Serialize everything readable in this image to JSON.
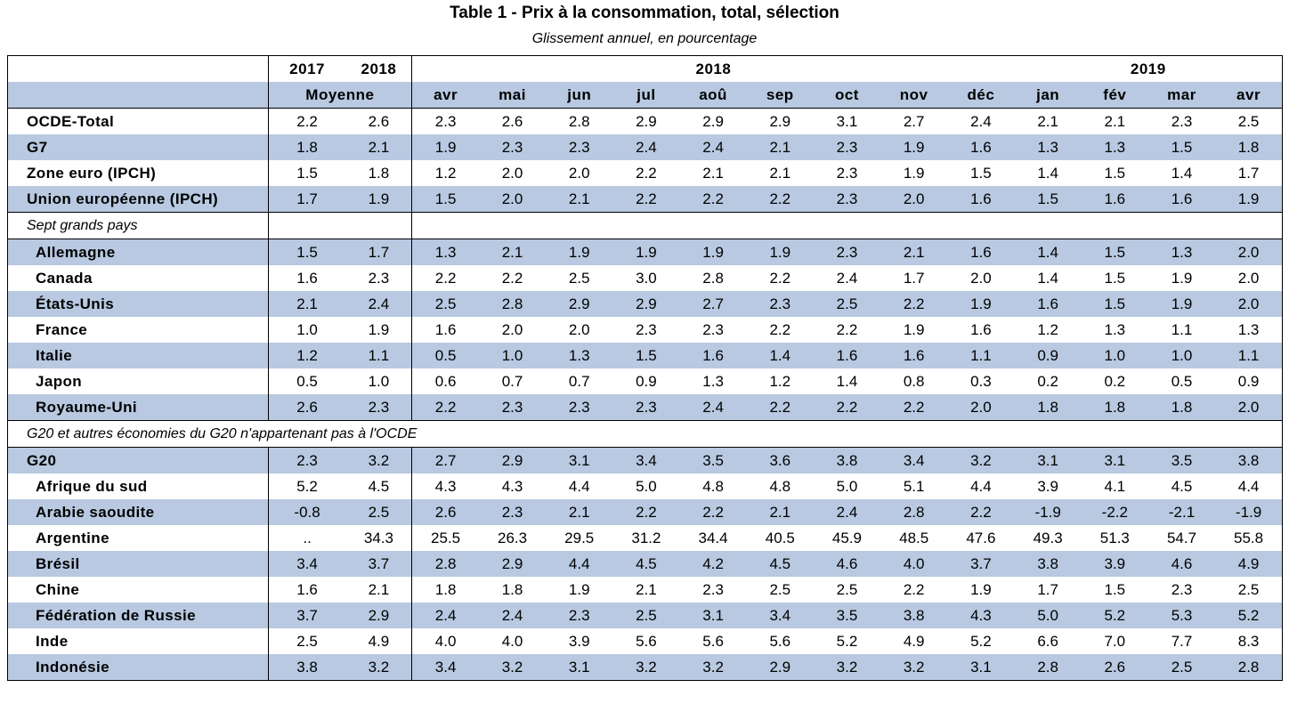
{
  "title": "Table 1 - Prix à la consommation, total, sélection",
  "subtitle": "Glissement annuel, en pourcentage",
  "header": {
    "year_a": "2017",
    "year_b": "2018",
    "year_group_2018": "2018",
    "year_group_2019": "2019",
    "average_label": "Moyenne",
    "months": [
      "avr",
      "mai",
      "jun",
      "jul",
      "aoû",
      "sep",
      "oct",
      "nov",
      "déc",
      "jan",
      "fév",
      "mar",
      "avr"
    ]
  },
  "sections": {
    "seven": "Sept grands pays",
    "g20": "G20 et autres économies du G20 n'appartenant pas à l'OCDE"
  },
  "rows": [
    {
      "label": "OCDE-Total",
      "values": [
        "2.2",
        "2.6",
        "2.3",
        "2.6",
        "2.8",
        "2.9",
        "2.9",
        "2.9",
        "3.1",
        "2.7",
        "2.4",
        "2.1",
        "2.1",
        "2.3",
        "2.5"
      ]
    },
    {
      "label": "G7",
      "values": [
        "1.8",
        "2.1",
        "1.9",
        "2.3",
        "2.3",
        "2.4",
        "2.4",
        "2.1",
        "2.3",
        "1.9",
        "1.6",
        "1.3",
        "1.3",
        "1.5",
        "1.8"
      ]
    },
    {
      "label": "Zone euro (IPCH)",
      "values": [
        "1.5",
        "1.8",
        "1.2",
        "2.0",
        "2.0",
        "2.2",
        "2.1",
        "2.1",
        "2.3",
        "1.9",
        "1.5",
        "1.4",
        "1.5",
        "1.4",
        "1.7"
      ]
    },
    {
      "label": "Union européenne (IPCH)",
      "values": [
        "1.7",
        "1.9",
        "1.5",
        "2.0",
        "2.1",
        "2.2",
        "2.2",
        "2.2",
        "2.3",
        "2.0",
        "1.6",
        "1.5",
        "1.6",
        "1.6",
        "1.9"
      ]
    },
    {
      "label": "Allemagne",
      "values": [
        "1.5",
        "1.7",
        "1.3",
        "2.1",
        "1.9",
        "1.9",
        "1.9",
        "1.9",
        "2.3",
        "2.1",
        "1.6",
        "1.4",
        "1.5",
        "1.3",
        "2.0"
      ]
    },
    {
      "label": "Canada",
      "values": [
        "1.6",
        "2.3",
        "2.2",
        "2.2",
        "2.5",
        "3.0",
        "2.8",
        "2.2",
        "2.4",
        "1.7",
        "2.0",
        "1.4",
        "1.5",
        "1.9",
        "2.0"
      ]
    },
    {
      "label": "États-Unis",
      "values": [
        "2.1",
        "2.4",
        "2.5",
        "2.8",
        "2.9",
        "2.9",
        "2.7",
        "2.3",
        "2.5",
        "2.2",
        "1.9",
        "1.6",
        "1.5",
        "1.9",
        "2.0"
      ]
    },
    {
      "label": "France",
      "values": [
        "1.0",
        "1.9",
        "1.6",
        "2.0",
        "2.0",
        "2.3",
        "2.3",
        "2.2",
        "2.2",
        "1.9",
        "1.6",
        "1.2",
        "1.3",
        "1.1",
        "1.3"
      ]
    },
    {
      "label": "Italie",
      "values": [
        "1.2",
        "1.1",
        "0.5",
        "1.0",
        "1.3",
        "1.5",
        "1.6",
        "1.4",
        "1.6",
        "1.6",
        "1.1",
        "0.9",
        "1.0",
        "1.0",
        "1.1"
      ]
    },
    {
      "label": "Japon",
      "values": [
        "0.5",
        "1.0",
        "0.6",
        "0.7",
        "0.7",
        "0.9",
        "1.3",
        "1.2",
        "1.4",
        "0.8",
        "0.3",
        "0.2",
        "0.2",
        "0.5",
        "0.9"
      ]
    },
    {
      "label": "Royaume-Uni",
      "values": [
        "2.6",
        "2.3",
        "2.2",
        "2.3",
        "2.3",
        "2.3",
        "2.4",
        "2.2",
        "2.2",
        "2.2",
        "2.0",
        "1.8",
        "1.8",
        "1.8",
        "2.0"
      ]
    },
    {
      "label": "G20",
      "values": [
        "2.3",
        "3.2",
        "2.7",
        "2.9",
        "3.1",
        "3.4",
        "3.5",
        "3.6",
        "3.8",
        "3.4",
        "3.2",
        "3.1",
        "3.1",
        "3.5",
        "3.8"
      ]
    },
    {
      "label": "Afrique du sud",
      "values": [
        "5.2",
        "4.5",
        "4.3",
        "4.3",
        "4.4",
        "5.0",
        "4.8",
        "4.8",
        "5.0",
        "5.1",
        "4.4",
        "3.9",
        "4.1",
        "4.5",
        "4.4"
      ]
    },
    {
      "label": "Arabie saoudite",
      "values": [
        "-0.8",
        "2.5",
        "2.6",
        "2.3",
        "2.1",
        "2.2",
        "2.2",
        "2.1",
        "2.4",
        "2.8",
        "2.2",
        "-1.9",
        "-2.2",
        "-2.1",
        "-1.9"
      ]
    },
    {
      "label": "Argentine",
      "values": [
        "..",
        "34.3",
        "25.5",
        "26.3",
        "29.5",
        "31.2",
        "34.4",
        "40.5",
        "45.9",
        "48.5",
        "47.6",
        "49.3",
        "51.3",
        "54.7",
        "55.8"
      ]
    },
    {
      "label": "Brésil",
      "values": [
        "3.4",
        "3.7",
        "2.8",
        "2.9",
        "4.4",
        "4.5",
        "4.2",
        "4.5",
        "4.6",
        "4.0",
        "3.7",
        "3.8",
        "3.9",
        "4.6",
        "4.9"
      ]
    },
    {
      "label": "Chine",
      "values": [
        "1.6",
        "2.1",
        "1.8",
        "1.8",
        "1.9",
        "2.1",
        "2.3",
        "2.5",
        "2.5",
        "2.2",
        "1.9",
        "1.7",
        "1.5",
        "2.3",
        "2.5"
      ]
    },
    {
      "label": "Fédération de Russie",
      "values": [
        "3.7",
        "2.9",
        "2.4",
        "2.4",
        "2.3",
        "2.5",
        "3.1",
        "3.4",
        "3.5",
        "3.8",
        "4.3",
        "5.0",
        "5.2",
        "5.3",
        "5.2"
      ]
    },
    {
      "label": "Inde",
      "values": [
        "2.5",
        "4.9",
        "4.0",
        "4.0",
        "3.9",
        "5.6",
        "5.6",
        "5.6",
        "5.2",
        "4.9",
        "5.2",
        "6.6",
        "7.0",
        "7.7",
        "8.3"
      ]
    },
    {
      "label": "Indonésie",
      "values": [
        "3.8",
        "3.2",
        "3.4",
        "3.2",
        "3.1",
        "3.2",
        "3.2",
        "2.9",
        "3.2",
        "3.2",
        "3.1",
        "2.8",
        "2.6",
        "2.5",
        "2.8"
      ]
    }
  ]
}
